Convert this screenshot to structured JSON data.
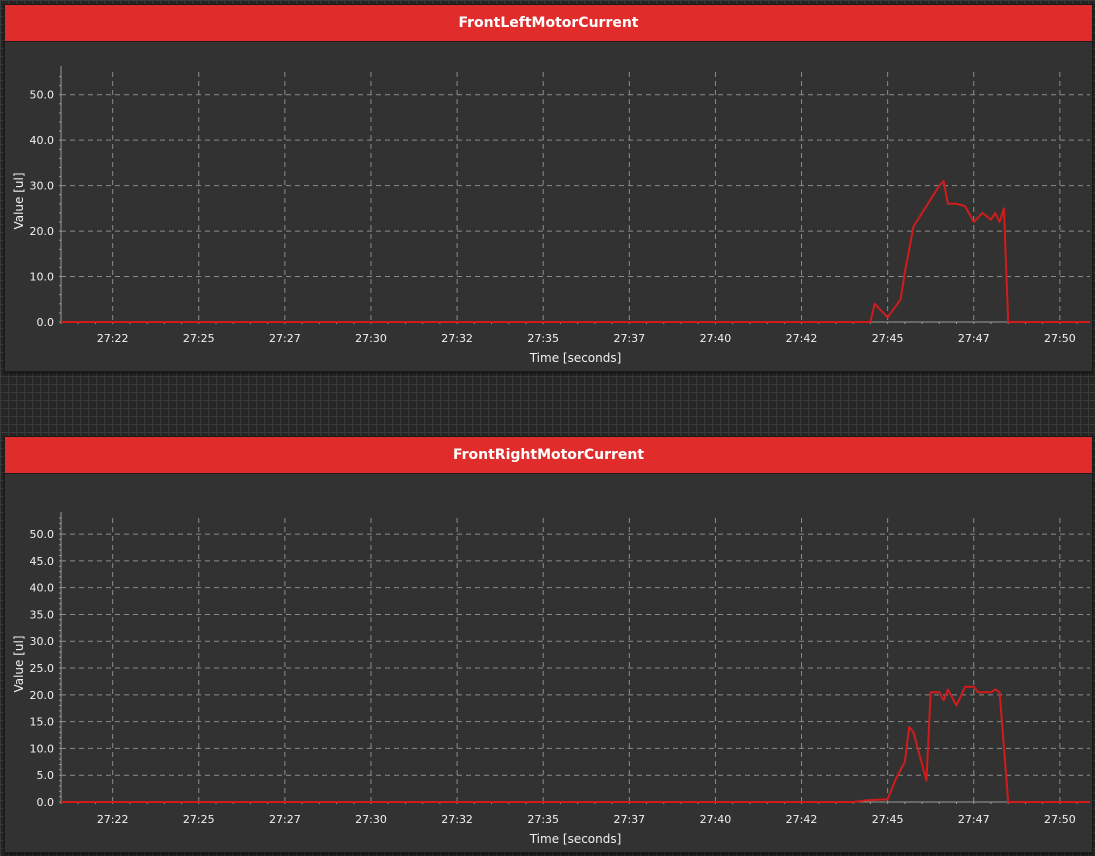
{
  "colors": {
    "header": "#e12c2c",
    "panel": "#323232",
    "series_a": "#d01c1c",
    "series_b": "#1a14e0"
  },
  "widgets": [
    {
      "title": "FrontLeftMotorCurrent"
    },
    {
      "title": "FrontRightMotorCurrent"
    }
  ],
  "chart_data": [
    {
      "type": "line",
      "title": "FrontLeftMotorCurrent",
      "xlabel": "Time [seconds]",
      "ylabel": "Value [ul]",
      "xlim": [
        1640.7,
        1652.65
      ],
      "ylim": [
        0,
        55
      ],
      "yticks": [
        0,
        10,
        20,
        30,
        40,
        50
      ],
      "ytick_labels": [
        "0.0",
        "10.0",
        "20.0",
        "30.0",
        "40.0",
        "50.0"
      ],
      "xticks": [
        1641.3,
        1642.3,
        1643.3,
        1644.3,
        1645.3,
        1646.3,
        1647.3,
        1648.3,
        1649.3,
        1650.3,
        1651.3,
        1652.3
      ],
      "xtick_labels": [
        "27:22",
        "27:25",
        "27:27",
        "27:30",
        "27:32",
        "27:35",
        "27:37",
        "27:40",
        "27:42",
        "27:45",
        "27:47",
        "27:50"
      ],
      "grid": true,
      "series": [
        {
          "color": "#d01c1c",
          "x": [
            1640.7,
            1649.9,
            1650.1,
            1650.15,
            1650.3,
            1650.45,
            1650.5,
            1650.6,
            1650.7,
            1650.8,
            1650.9,
            1650.95,
            1651.0,
            1651.1,
            1651.2,
            1651.3,
            1651.4,
            1651.5,
            1651.55,
            1651.6,
            1651.65,
            1651.7,
            1652.65
          ],
          "y": [
            0,
            0,
            0,
            4,
            1,
            5,
            11,
            21,
            24,
            27,
            30,
            31,
            26,
            26,
            25.5,
            22,
            24,
            22.5,
            24,
            22,
            25,
            0,
            0
          ]
        }
      ]
    },
    {
      "type": "line",
      "title": "FrontRightMotorCurrent",
      "xlabel": "Time [seconds]",
      "ylabel": "Value [ul]",
      "xlim": [
        1640.7,
        1652.65
      ],
      "ylim": [
        0,
        53
      ],
      "yticks": [
        0,
        5,
        10,
        15,
        20,
        25,
        30,
        35,
        40,
        45,
        50
      ],
      "ytick_labels": [
        "0.0",
        "5.0",
        "10.0",
        "15.0",
        "20.0",
        "25.0",
        "30.0",
        "35.0",
        "40.0",
        "45.0",
        "50.0"
      ],
      "xticks": [
        1641.3,
        1642.3,
        1643.3,
        1644.3,
        1645.3,
        1646.3,
        1647.3,
        1648.3,
        1649.3,
        1650.3,
        1651.3,
        1652.3
      ],
      "xtick_labels": [
        "27:22",
        "27:25",
        "27:27",
        "27:30",
        "27:32",
        "27:35",
        "27:37",
        "27:40",
        "27:42",
        "27:45",
        "27:47",
        "27:50"
      ],
      "grid": true,
      "series": [
        {
          "color": "#d01c1c",
          "x": [
            1640.7,
            1649.9,
            1650.05,
            1650.3,
            1650.4,
            1650.5,
            1650.55,
            1650.6,
            1650.75,
            1650.8,
            1650.9,
            1650.95,
            1651.0,
            1651.1,
            1651.2,
            1651.3,
            1651.35,
            1651.4,
            1651.5,
            1651.55,
            1651.6,
            1651.7,
            1652.65
          ],
          "y": [
            0,
            0,
            0.3,
            0.5,
            4.5,
            7.5,
            14,
            13,
            4,
            20.5,
            20.5,
            19,
            21,
            18,
            21.5,
            21.5,
            20.5,
            20.5,
            20.5,
            21,
            20.5,
            0,
            0
          ]
        }
      ]
    }
  ]
}
